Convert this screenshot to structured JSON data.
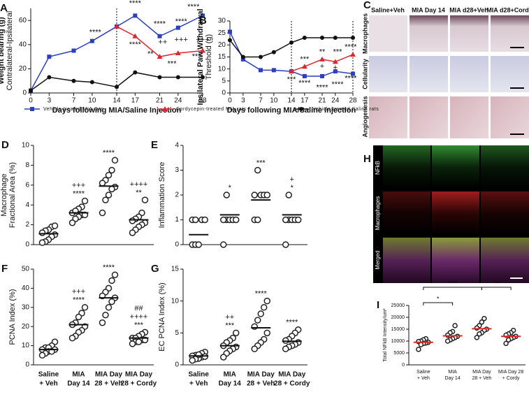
{
  "chart_data": [
    {
      "type": "line",
      "label": "A",
      "ylabel": [
        "Weight bearing (g)",
        "Contralateral-Ipsilateral"
      ],
      "xlabel": "Days following MIA/Saline Injection",
      "x": [
        0,
        3,
        7,
        10,
        14,
        17,
        21,
        24,
        28
      ],
      "xlim": [
        0,
        28
      ],
      "xticks": [
        0,
        3,
        7,
        10,
        14,
        17,
        21,
        24,
        28
      ],
      "ylim": [
        0,
        70
      ],
      "yticks": [
        0,
        20,
        40,
        60
      ],
      "vlines": [
        14
      ],
      "legend": "bottom",
      "series": [
        {
          "name": "Vehicle-treated MIA rats",
          "color": "#2b3fbf",
          "marker": "square",
          "values": [
            2,
            30,
            35,
            43,
            55,
            64,
            47,
            54,
            64
          ]
        },
        {
          "name": "Cordycepin-treated MIA rats",
          "color": "#e0262b",
          "marker": "triangle",
          "values": [
            null,
            null,
            null,
            null,
            55,
            47,
            30,
            33,
            35
          ]
        },
        {
          "name": "Vehicle-treated Saline rats",
          "color": "#111111",
          "marker": "circle",
          "values": [
            2,
            13,
            10,
            9,
            5,
            17,
            13,
            13,
            13
          ]
        }
      ],
      "annotations": [
        {
          "text": "****",
          "x": 10.5,
          "y": 50
        },
        {
          "text": "****",
          "x": 17,
          "y": 74
        },
        {
          "text": "****",
          "x": 21,
          "y": 57
        },
        {
          "text": "****",
          "x": 24.5,
          "y": 59
        },
        {
          "text": "****",
          "x": 26.5,
          "y": 71
        },
        {
          "text": "****",
          "x": 17,
          "y": 40
        },
        {
          "text": "**",
          "x": 19.5,
          "y": 32
        },
        {
          "text": "++",
          "x": 21.5,
          "y": 42
        },
        {
          "text": "+++",
          "x": 24.5,
          "y": 44
        },
        {
          "text": "+++",
          "x": 28,
          "y": 44
        },
        {
          "text": "***",
          "x": 23,
          "y": 24
        },
        {
          "text": "***",
          "x": 27,
          "y": 30
        }
      ]
    },
    {
      "type": "line",
      "label": "B",
      "ylabel": [
        "Ipsilateral Paw Withdrawal",
        "Threshold (g)"
      ],
      "xlabel": "Days following MIA/Saline Injection",
      "x": [
        0,
        3,
        7,
        10,
        14,
        17,
        21,
        24,
        28
      ],
      "xlim": [
        0,
        28
      ],
      "xticks": [
        0,
        3,
        7,
        10,
        14,
        17,
        21,
        24,
        28
      ],
      "ylim": [
        0,
        30
      ],
      "yticks": [
        0,
        5,
        10,
        15,
        20,
        25,
        30
      ],
      "vlines": [
        14,
        28
      ],
      "series": [
        {
          "color": "#2b3fbf",
          "marker": "square",
          "values": [
            25.5,
            14,
            9.5,
            9.5,
            9,
            7,
            7,
            9,
            8
          ]
        },
        {
          "color": "#e0262b",
          "marker": "triangle",
          "values": [
            null,
            null,
            null,
            null,
            9,
            11,
            14,
            13,
            16
          ]
        },
        {
          "color": "#111111",
          "marker": "circle",
          "values": [
            22,
            15,
            15,
            17,
            21,
            23,
            23,
            23,
            23
          ]
        }
      ],
      "annotations": [
        {
          "text": "***",
          "x": 17,
          "y": 14
        },
        {
          "text": "**",
          "x": 21,
          "y": 17
        },
        {
          "text": "***",
          "x": 24.5,
          "y": 17
        },
        {
          "text": "****",
          "x": 27.5,
          "y": 19
        },
        {
          "text": "***",
          "x": 14,
          "y": 5.5
        },
        {
          "text": "****",
          "x": 17,
          "y": 4
        },
        {
          "text": "+",
          "x": 21,
          "y": 11
        },
        {
          "text": "+",
          "x": 24,
          "y": 10.5
        },
        {
          "text": "****",
          "x": 21,
          "y": 2.2
        },
        {
          "text": "****",
          "x": 24.5,
          "y": 3.5
        },
        {
          "text": "****",
          "x": 27.5,
          "y": 6
        }
      ]
    },
    {
      "type": "dotplot",
      "label": "D",
      "ylabel": [
        "Macrophage",
        "Fractional Area (%)"
      ],
      "categories": [
        null,
        null,
        null,
        null
      ],
      "ylim": [
        0,
        10
      ],
      "yticks": [
        0,
        2,
        4,
        6,
        8,
        10
      ],
      "mean_color": "#111111",
      "groups": [
        [
          1.8,
          1.5,
          1.4,
          1.2,
          1.0,
          0.8,
          0.5,
          0.3,
          0.2,
          1.9
        ],
        [
          4.4,
          3.8,
          3.6,
          3.2,
          3.0,
          3.0,
          2.8,
          2.6,
          2.2,
          3.4
        ],
        [
          8.5,
          7.5,
          7.0,
          6.5,
          6.2,
          5.8,
          5.6,
          5.0,
          4.5,
          3.2
        ],
        [
          4.5,
          3.2,
          2.8,
          2.6,
          2.4,
          2.2,
          2.0,
          1.8,
          1.5,
          1.2
        ]
      ],
      "means": [
        1.1,
        3.2,
        5.9,
        2.5
      ],
      "labels_above": [
        [],
        [
          "+++",
          "****"
        ],
        [
          "****"
        ],
        [
          "++++",
          "**"
        ]
      ]
    },
    {
      "type": "dotplot",
      "label": "E",
      "ylabel": [
        "Inflammation Score"
      ],
      "categories": [
        null,
        null,
        null,
        null
      ],
      "ylim": [
        0,
        4
      ],
      "yticks": [
        0,
        1,
        2,
        3,
        4
      ],
      "mean_color": "#111111",
      "groups": [
        [
          1,
          1,
          1,
          1,
          0,
          0,
          0
        ],
        [
          2,
          1,
          1,
          1,
          1,
          1,
          0
        ],
        [
          3,
          2,
          2,
          2,
          2,
          1,
          1
        ],
        [
          2,
          1,
          1,
          1,
          1,
          1,
          0
        ]
      ],
      "means": [
        0.4,
        1.2,
        1.8,
        1.2
      ],
      "labels_above": [
        [],
        [
          "*"
        ],
        [
          "***"
        ],
        [
          "+",
          "*"
        ]
      ]
    },
    {
      "type": "dotplot",
      "label": "F",
      "ylabel": [
        "PCNA Index (%)"
      ],
      "categories": [
        [
          "Saline",
          "+ Veh"
        ],
        [
          "MIA",
          "Day 14"
        ],
        [
          "MIA Day",
          "28 + Veh"
        ],
        [
          "MIA Day",
          "28 + Cordy"
        ]
      ],
      "ylim": [
        0,
        50
      ],
      "yticks": [
        0,
        10,
        20,
        30,
        40,
        50
      ],
      "mean_color": "#111111",
      "groups": [
        [
          12,
          10,
          9,
          9,
          8,
          8,
          7,
          7,
          6,
          5
        ],
        [
          30,
          27,
          25,
          22,
          21,
          20,
          18,
          17,
          15,
          14
        ],
        [
          47,
          44,
          40,
          38,
          36,
          35,
          33,
          30,
          26,
          22
        ],
        [
          17,
          16,
          15,
          14,
          14,
          13,
          13,
          12,
          12,
          11
        ]
      ],
      "means": [
        8,
        21,
        35,
        14
      ],
      "labels_above": [
        [],
        [
          "+++",
          "****"
        ],
        [
          "****"
        ],
        [
          "##",
          "++++",
          "***"
        ]
      ]
    },
    {
      "type": "dotplot",
      "label": "G",
      "ylabel": [
        "EC PCNA Index (%)"
      ],
      "categories": [
        [
          "Saline",
          "+ Veh"
        ],
        [
          "MIA",
          "Day 14"
        ],
        [
          "MIA Day",
          "28 + Veh"
        ],
        [
          "MIA Day",
          "28 + Cordy"
        ]
      ],
      "ylim": [
        0,
        15
      ],
      "yticks": [
        0,
        5,
        10,
        15
      ],
      "mean_color": "#111111",
      "groups": [
        [
          2,
          1.8,
          1.5,
          1.4,
          1.2,
          1.0,
          0.9,
          0.7,
          1.6,
          1.3
        ],
        [
          5,
          4.2,
          3.8,
          3.5,
          3,
          2.8,
          2.5,
          2.2,
          1.8,
          1.2
        ],
        [
          10,
          9,
          8,
          7,
          6,
          5,
          4,
          3.5,
          3,
          2.5
        ],
        [
          5.5,
          5,
          4.5,
          4,
          3.8,
          3.5,
          3.2,
          3,
          2.8,
          2.5
        ]
      ],
      "means": [
        1.4,
        3,
        5.8,
        3.7
      ],
      "labels_above": [
        [],
        [
          "++",
          "***"
        ],
        [
          "****"
        ],
        [
          "****"
        ]
      ]
    },
    {
      "type": "dotplot",
      "label": "I",
      "ylabel": [
        "Total NFkB Intensity/um²"
      ],
      "categories": [
        [
          "Saline",
          "+ Veh"
        ],
        [
          "MIA",
          "Day 14"
        ],
        [
          "MIA Day",
          "28 + Veh"
        ],
        [
          "MIA Day 28",
          "+ Cordy"
        ]
      ],
      "ylim": [
        0,
        25000
      ],
      "yticks": [
        0,
        5000,
        10000,
        15000,
        20000,
        25000
      ],
      "mean_color": "#e0262b",
      "groups": [
        [
          11000,
          10500,
          10000,
          9800,
          9500,
          9200,
          9000,
          8500,
          6500
        ],
        [
          16500,
          14000,
          13500,
          12500,
          12000,
          11500,
          11000,
          10500,
          10000
        ],
        [
          19500,
          18000,
          16500,
          15500,
          15000,
          14500,
          13500,
          13000,
          11500
        ],
        [
          14500,
          13500,
          13000,
          12500,
          12000,
          11500,
          11000,
          10500,
          9000
        ]
      ],
      "means": [
        9500,
        12200,
        15200,
        12000
      ],
      "comparisons": [
        {
          "groups": [
            0,
            1
          ],
          "label": "*"
        },
        {
          "groups": [
            0,
            2
          ],
          "label": "****"
        },
        {
          "groups": [
            2,
            3
          ],
          "label": "**"
        }
      ]
    }
  ],
  "image_panels": {
    "C": {
      "label": "C",
      "columns": [
        "Saline+Veh",
        "MIA Day 14",
        "MIA d28+Veh",
        "MIA d28+Cordy"
      ],
      "rows": [
        "Macrophages",
        "Cellularity",
        "Angiogenesis"
      ]
    },
    "H": {
      "label": "H",
      "rows": [
        "NFkB",
        "Macrophages",
        "Merged"
      ]
    }
  }
}
